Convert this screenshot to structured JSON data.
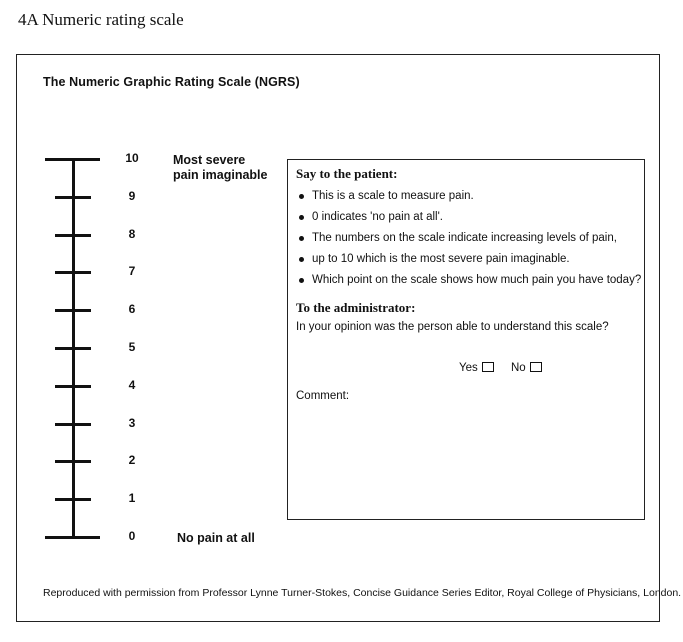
{
  "heading": "4A  Numeric rating scale",
  "scale": {
    "title": "The Numeric Graphic Rating Scale (NGRS)",
    "numbers": [
      "10",
      "9",
      "8",
      "7",
      "6",
      "5",
      "4",
      "3",
      "2",
      "1",
      "0"
    ],
    "top_anchor_line1": "Most severe",
    "top_anchor_line2": "pain imaginable",
    "bottom_anchor": "No pain at all"
  },
  "panel": {
    "patient_title": "Say to the patient:",
    "patient_points": [
      "This is a scale to measure pain.",
      "0 indicates 'no pain at all'.",
      "The numbers on the scale indicate increasing levels of pain,",
      "up to 10 which is the most severe pain imaginable.",
      "Which point on the scale shows how much pain you have today?"
    ],
    "admin_title": "To the administrator:",
    "admin_question": "In your opinion was the person able to understand this scale?",
    "yes_label": "Yes",
    "no_label": "No",
    "comment_label": "Comment:"
  },
  "credit": "Reproduced with permission from Professor Lynne Turner-Stokes, Concise Guidance Series Editor, Royal College of Physicians, London."
}
